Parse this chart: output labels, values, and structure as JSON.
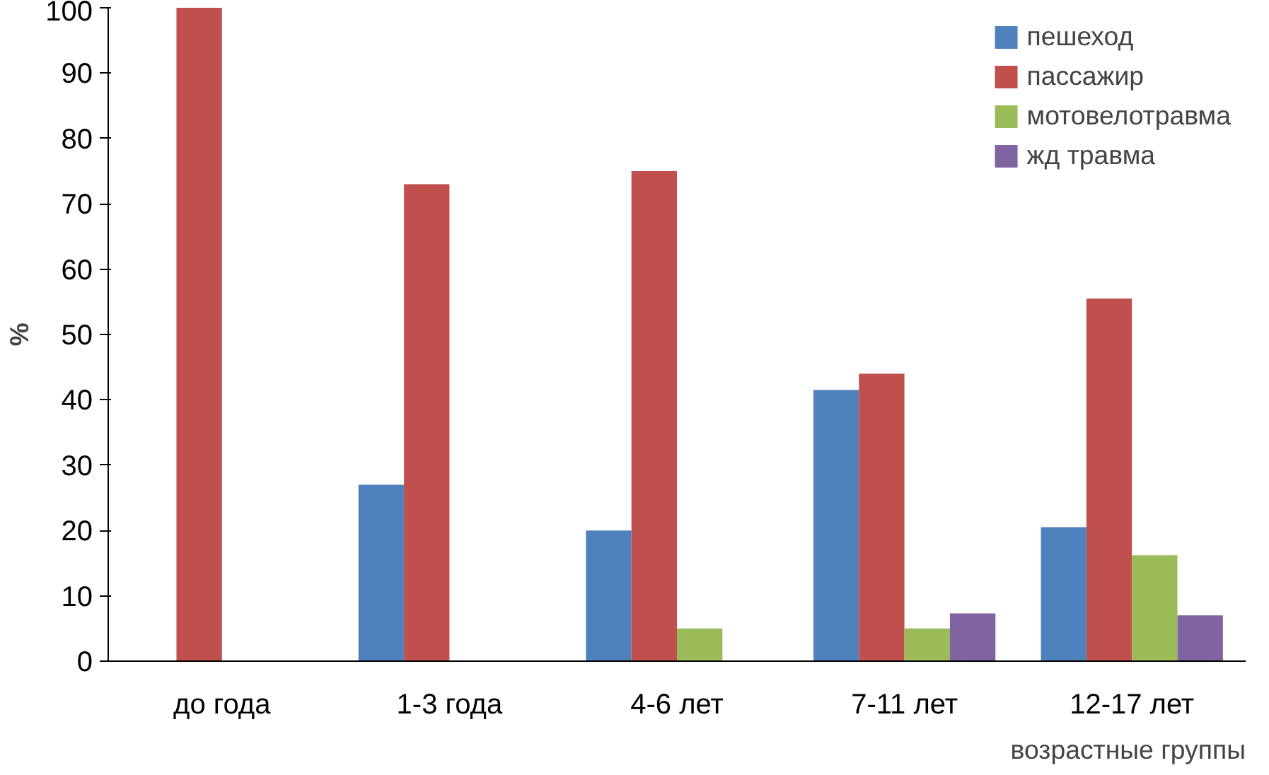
{
  "chart_data": {
    "type": "bar",
    "xlabel": "возрастные группы",
    "ylabel": "%",
    "categories": [
      "до года",
      "1-3 года",
      "4-6 лет",
      "7-11 лет",
      "12-17 лет"
    ],
    "series": [
      {
        "name": "пешеход",
        "color": "#4f81bd",
        "values": [
          null,
          27,
          20,
          41.5,
          20.5
        ]
      },
      {
        "name": "пассажир",
        "color": "#c0504d",
        "values": [
          100,
          73,
          75,
          44,
          55.5
        ]
      },
      {
        "name": "мотовелотравма",
        "color": "#9bbb59",
        "values": [
          null,
          null,
          5,
          5,
          16.2
        ]
      },
      {
        "name": "жд травма",
        "color": "#8064a2",
        "values": [
          null,
          null,
          null,
          7.3,
          7
        ]
      }
    ],
    "ylim": [
      0,
      100
    ],
    "yticks": [
      0,
      10,
      20,
      30,
      40,
      50,
      60,
      70,
      80,
      90,
      100
    ],
    "grid": false,
    "legend": "top right"
  }
}
